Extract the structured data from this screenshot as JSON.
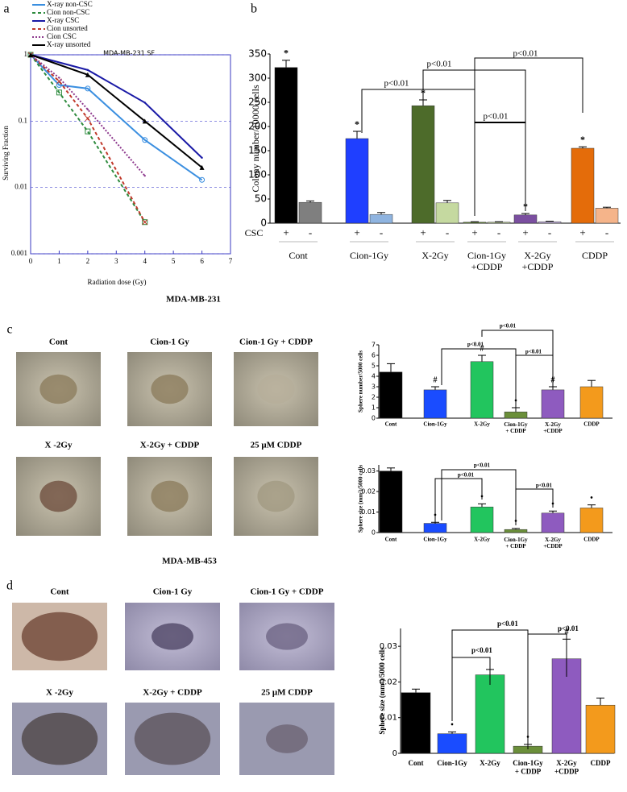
{
  "panel_labels": [
    "a",
    "b",
    "c",
    "d"
  ],
  "photos": [
    {
      "title": "MDA-MB-231",
      "captions": [
        "Cont",
        "Cion-1 Gy",
        "Cion-1 Gy + CDDP",
        "X -2Gy",
        "X-2Gy + CDDP",
        "25 μM  CDDP"
      ]
    },
    {
      "title": "MDA-MB-453",
      "captions": [
        "Cont",
        "Cion-1 Gy",
        "Cion-1 Gy + CDDP",
        "X -2Gy",
        "X-2Gy + CDDP",
        "25 μM  CDDP"
      ]
    }
  ],
  "chart_data": [
    {
      "type": "line",
      "title": "MDA-MB-231 SF",
      "x_label": "Radiation dose (Gy)",
      "y_label": "Surviving Fraction",
      "xlim": [
        0,
        7
      ],
      "xticks": [
        0,
        1,
        2,
        3,
        4,
        5,
        6,
        7
      ],
      "ylim": [
        0.001,
        1
      ],
      "yticks": [
        0.001,
        0.01,
        0.1,
        1
      ],
      "log_y": true,
      "grid": true,
      "legend": "top-left",
      "series": [
        {
          "name": "X-ray non-CSC",
          "color": "#3b8fe0",
          "dash": "solid",
          "marker": "circle",
          "x": [
            0,
            1,
            2,
            4,
            6
          ],
          "values": [
            1,
            0.35,
            0.31,
            0.052,
            0.013
          ]
        },
        {
          "name": "Cion non-CSC",
          "color": "#2e8b3e",
          "dash": "dashed",
          "marker": "square",
          "x": [
            0,
            1,
            2,
            4
          ],
          "values": [
            1,
            0.27,
            0.07,
            0.003
          ]
        },
        {
          "name": "X-ray CSC",
          "color": "#1a1aa6",
          "dash": "solid",
          "marker": "none",
          "x": [
            0,
            2,
            4,
            6
          ],
          "values": [
            1,
            0.59,
            0.19,
            0.028
          ]
        },
        {
          "name": "Cion unsorted",
          "color": "#c0392b",
          "dash": "dashed",
          "marker": "cross",
          "x": [
            0,
            1,
            2,
            4
          ],
          "values": [
            1,
            0.4,
            0.11,
            0.003
          ]
        },
        {
          "name": "Cion CSC",
          "color": "#8e3a8e",
          "dash": "dotted",
          "marker": "none",
          "x": [
            0,
            1,
            2,
            4
          ],
          "values": [
            1,
            0.45,
            0.15,
            0.015
          ]
        },
        {
          "name": "X-ray unsorted",
          "color": "#000000",
          "dash": "solid",
          "marker": "triangle",
          "x": [
            0,
            2,
            4,
            6
          ],
          "values": [
            1,
            0.5,
            0.1,
            0.02
          ]
        }
      ]
    },
    {
      "type": "bar",
      "y_label": "Colony number/10000 cells",
      "ylim": [
        0,
        350
      ],
      "yticks": [
        0,
        50,
        100,
        150,
        200,
        250,
        300,
        350
      ],
      "row_label": "CSC",
      "categories": [
        "+",
        "-",
        "+",
        "-",
        "+",
        "-",
        "+",
        "-",
        "+",
        "-",
        "+",
        "-"
      ],
      "groups": [
        "Cont",
        "Cion-1Gy",
        "X-2Gy",
        "Cion-1Gy\n+CDDP",
        "X-2Gy\n+CDDP",
        "CDDP"
      ],
      "values": [
        322,
        43,
        175,
        18,
        243,
        42,
        2,
        2,
        17,
        3,
        155,
        31
      ],
      "errors": [
        15,
        3,
        15,
        4,
        12,
        5,
        1,
        1,
        3,
        1,
        3,
        2
      ],
      "colors": [
        "#000000",
        "#7f7f7f",
        "#1f3fff",
        "#8fb4e0",
        "#4d6b2a",
        "#c5d9a0",
        "#6b8f3a",
        "#c5d9a0",
        "#7b4fa0",
        "#c3b2dd",
        "#e46c0a",
        "#f5b48a"
      ],
      "significance": [
        "*",
        null,
        "*",
        null,
        "*",
        null,
        null,
        null,
        "*",
        null,
        "*",
        null
      ],
      "annotations": [
        "p<0.01",
        "p<0.01",
        "p<0.01",
        "p<0.01"
      ]
    },
    {
      "type": "bar",
      "y_label": "Sphere  number/5000 cells",
      "ylim": [
        0,
        7
      ],
      "yticks": [
        0,
        1,
        2,
        3,
        4,
        5,
        6,
        7
      ],
      "categories": [
        "Cont",
        "Cion-1Gy",
        "X-2Gy",
        "Cion-1Gy\n+ CDDP",
        "X-2Gy\n+CDDP",
        "CDDP"
      ],
      "values": [
        4.4,
        2.7,
        5.4,
        0.6,
        2.7,
        3.0
      ],
      "errors": [
        0.8,
        0.3,
        0.6,
        0.4,
        0.3,
        0.6
      ],
      "colors": [
        "#000000",
        "#1a4cff",
        "#22c55e",
        "#6b8f3a",
        "#8e5bbf",
        "#f39a1c"
      ],
      "significance": [
        null,
        "#",
        "#",
        "•",
        "#",
        null
      ],
      "annotations": [
        "p<0.01",
        "p<0.01",
        "p<0.01"
      ]
    },
    {
      "type": "bar",
      "y_label": "Sphere  size (mm²)/5000 cells",
      "ylim": [
        0,
        0.033
      ],
      "yticks": [
        0,
        0.01,
        0.02,
        0.03
      ],
      "categories": [
        "Cont",
        "Cion-1Gy",
        "X-2Gy",
        "Cion-1Gy\n+ CDDP",
        "X-2Gy\n+CDDP",
        "CDDP"
      ],
      "values": [
        0.03,
        0.0045,
        0.0125,
        0.0015,
        0.0095,
        0.012
      ],
      "errors": [
        0.0015,
        0.0005,
        0.0015,
        0.0005,
        0.001,
        0.0015
      ],
      "colors": [
        "#000000",
        "#1a4cff",
        "#22c55e",
        "#6b8f3a",
        "#8e5bbf",
        "#f39a1c"
      ],
      "significance": [
        null,
        "•",
        "•",
        "•",
        "•",
        "•"
      ],
      "annotations": [
        "p<0.01",
        "p<0.01",
        "p<0.01"
      ]
    },
    {
      "type": "bar",
      "y_label": "Sphere size (mm²)/5000 cells",
      "ylim": [
        0,
        0.035
      ],
      "yticks": [
        0,
        0.01,
        0.02,
        0.03
      ],
      "categories": [
        "Cont",
        "Cion-1Gy",
        "X-2Gy",
        "Cion-1Gy\n+ CDDP",
        "X-2Gy\n+CDDP",
        "CDDP"
      ],
      "values": [
        0.017,
        0.0055,
        0.022,
        0.002,
        0.0265,
        0.0135
      ],
      "errors": [
        0.001,
        0.0005,
        0.0015,
        0.0005,
        0.0055,
        0.002
      ],
      "colors": [
        "#000000",
        "#1a4cff",
        "#22c55e",
        "#6b8f3a",
        "#8e5bbf",
        "#f39a1c"
      ],
      "significance": [
        null,
        "•",
        null,
        "•",
        "#",
        null
      ],
      "annotations": [
        "p<0.01",
        "p<0.01",
        "p<0.01"
      ]
    }
  ]
}
